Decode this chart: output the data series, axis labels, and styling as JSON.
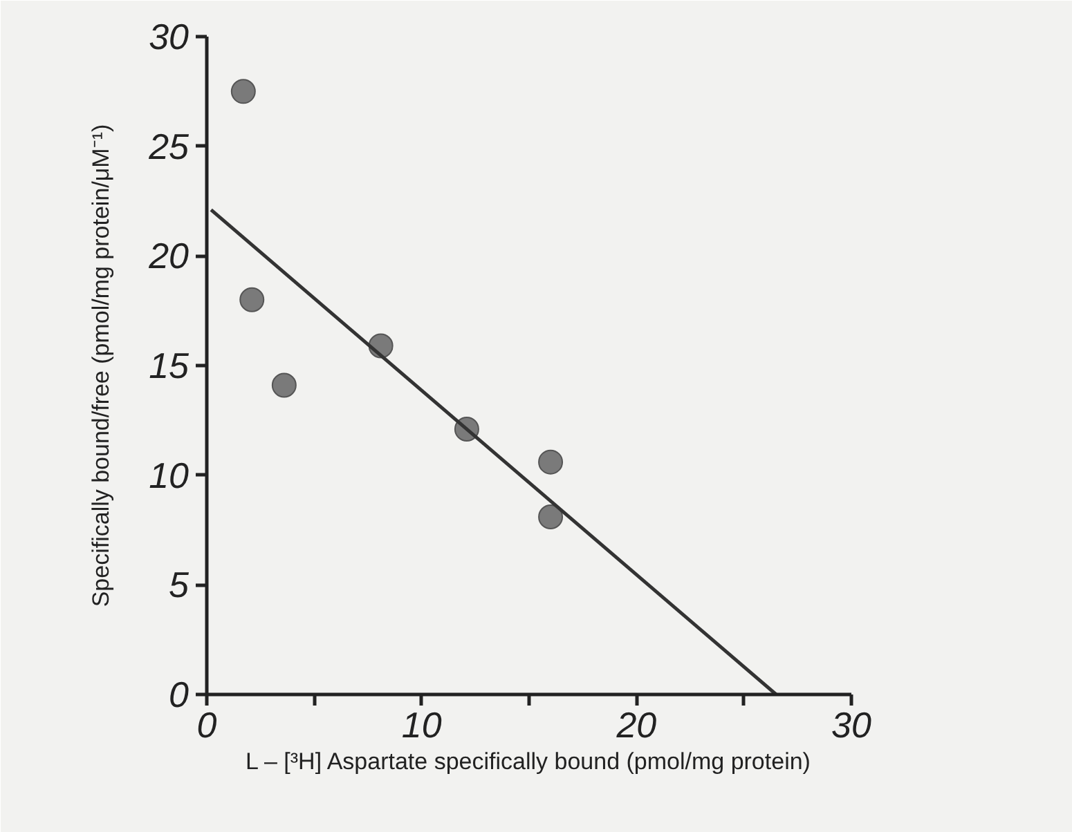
{
  "chart_data": {
    "type": "scatter",
    "xlabel": "L – [³H] Aspartate specifically bound (pmol/mg protein)",
    "ylabel": "Specifically bound/free (pmol/mg protein/μM⁻¹)",
    "series": [
      {
        "color": "#7a7a7a",
        "marker": "circle",
        "x": [
          1.7,
          2.1,
          3.6,
          8.1,
          12.1,
          16.0,
          16.0
        ],
        "values": [
          27.5,
          18.0,
          14.1,
          15.9,
          12.1,
          10.6,
          8.1
        ]
      },
      {
        "type": "line",
        "color": "#333333",
        "marker": "none",
        "line_style": "solid",
        "x": [
          0.2,
          26.5
        ],
        "values": [
          22.1,
          0
        ]
      }
    ],
    "xlim": [
      0,
      30
    ],
    "ylim": [
      0,
      30
    ],
    "xticks": [
      0,
      {
        "value": 5,
        "label": null
      },
      10,
      {
        "value": 15,
        "label": null
      },
      20,
      {
        "value": 25,
        "label": null
      },
      30
    ],
    "yticks": [
      0,
      5,
      10,
      15,
      20,
      25,
      30
    ],
    "grid": false
  }
}
